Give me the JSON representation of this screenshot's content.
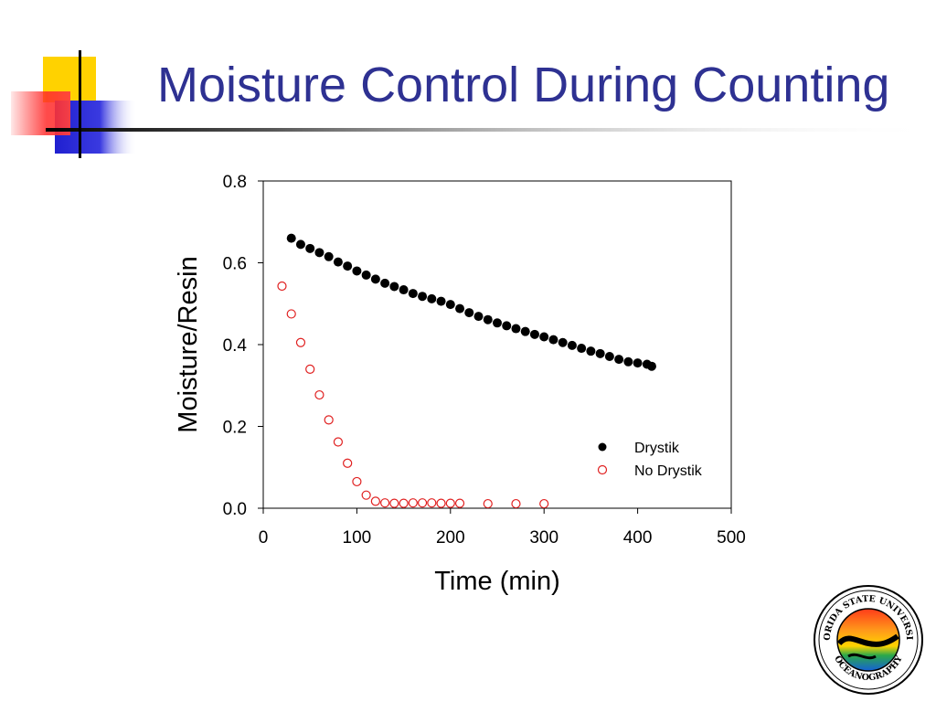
{
  "slide": {
    "title": "Moisture Control During Counting"
  },
  "logo": {
    "text_top": "FLORIDA STATE UNIVERSITY",
    "text_bottom": "OCEANOGRAPHY"
  },
  "colors": {
    "title": "#2e3192",
    "drystik": "#000000",
    "no_drystik": "#e02020",
    "deco_yellow": "#ffd200",
    "deco_blue": "#2b2bd6",
    "deco_red": "#ff2020"
  },
  "chart_data": {
    "type": "scatter",
    "xlabel": "Time (min)",
    "ylabel": "Moisture/Resin",
    "xlim": [
      0,
      500
    ],
    "ylim": [
      0,
      0.8
    ],
    "xticks": [
      0,
      100,
      200,
      300,
      400,
      500
    ],
    "xtick_labels": [
      "0",
      "100",
      "200",
      "300",
      "400",
      "500"
    ],
    "yticks": [
      0,
      0.2,
      0.4,
      0.6,
      0.8
    ],
    "ytick_labels": [
      "0.0",
      "0.2",
      "0.4",
      "0.6",
      "0.8"
    ],
    "grid": false,
    "legend_position": "bottom-right",
    "series": [
      {
        "name": "Drystik",
        "marker": "filled-circle",
        "x": [
          30,
          40,
          50,
          60,
          70,
          80,
          90,
          100,
          110,
          120,
          130,
          140,
          150,
          160,
          170,
          180,
          190,
          200,
          210,
          220,
          230,
          240,
          250,
          260,
          270,
          280,
          290,
          300,
          310,
          320,
          330,
          340,
          350,
          360,
          370,
          380,
          390,
          400,
          410,
          415
        ],
        "y": [
          0.66,
          0.645,
          0.635,
          0.625,
          0.615,
          0.602,
          0.592,
          0.58,
          0.57,
          0.56,
          0.55,
          0.542,
          0.534,
          0.525,
          0.518,
          0.512,
          0.506,
          0.498,
          0.488,
          0.478,
          0.469,
          0.461,
          0.453,
          0.446,
          0.439,
          0.432,
          0.425,
          0.419,
          0.412,
          0.405,
          0.398,
          0.391,
          0.384,
          0.378,
          0.371,
          0.364,
          0.358,
          0.355,
          0.352,
          0.347
        ]
      },
      {
        "name": "No Drystik",
        "marker": "open-circle",
        "x": [
          20,
          30,
          40,
          50,
          60,
          70,
          80,
          90,
          100,
          110,
          120,
          130,
          140,
          150,
          160,
          170,
          180,
          190,
          200,
          210,
          240,
          270,
          300
        ],
        "y": [
          0.543,
          0.475,
          0.405,
          0.34,
          0.277,
          0.216,
          0.162,
          0.11,
          0.065,
          0.032,
          0.017,
          0.013,
          0.012,
          0.012,
          0.013,
          0.013,
          0.013,
          0.012,
          0.012,
          0.012,
          0.011,
          0.011,
          0.011
        ]
      }
    ]
  }
}
